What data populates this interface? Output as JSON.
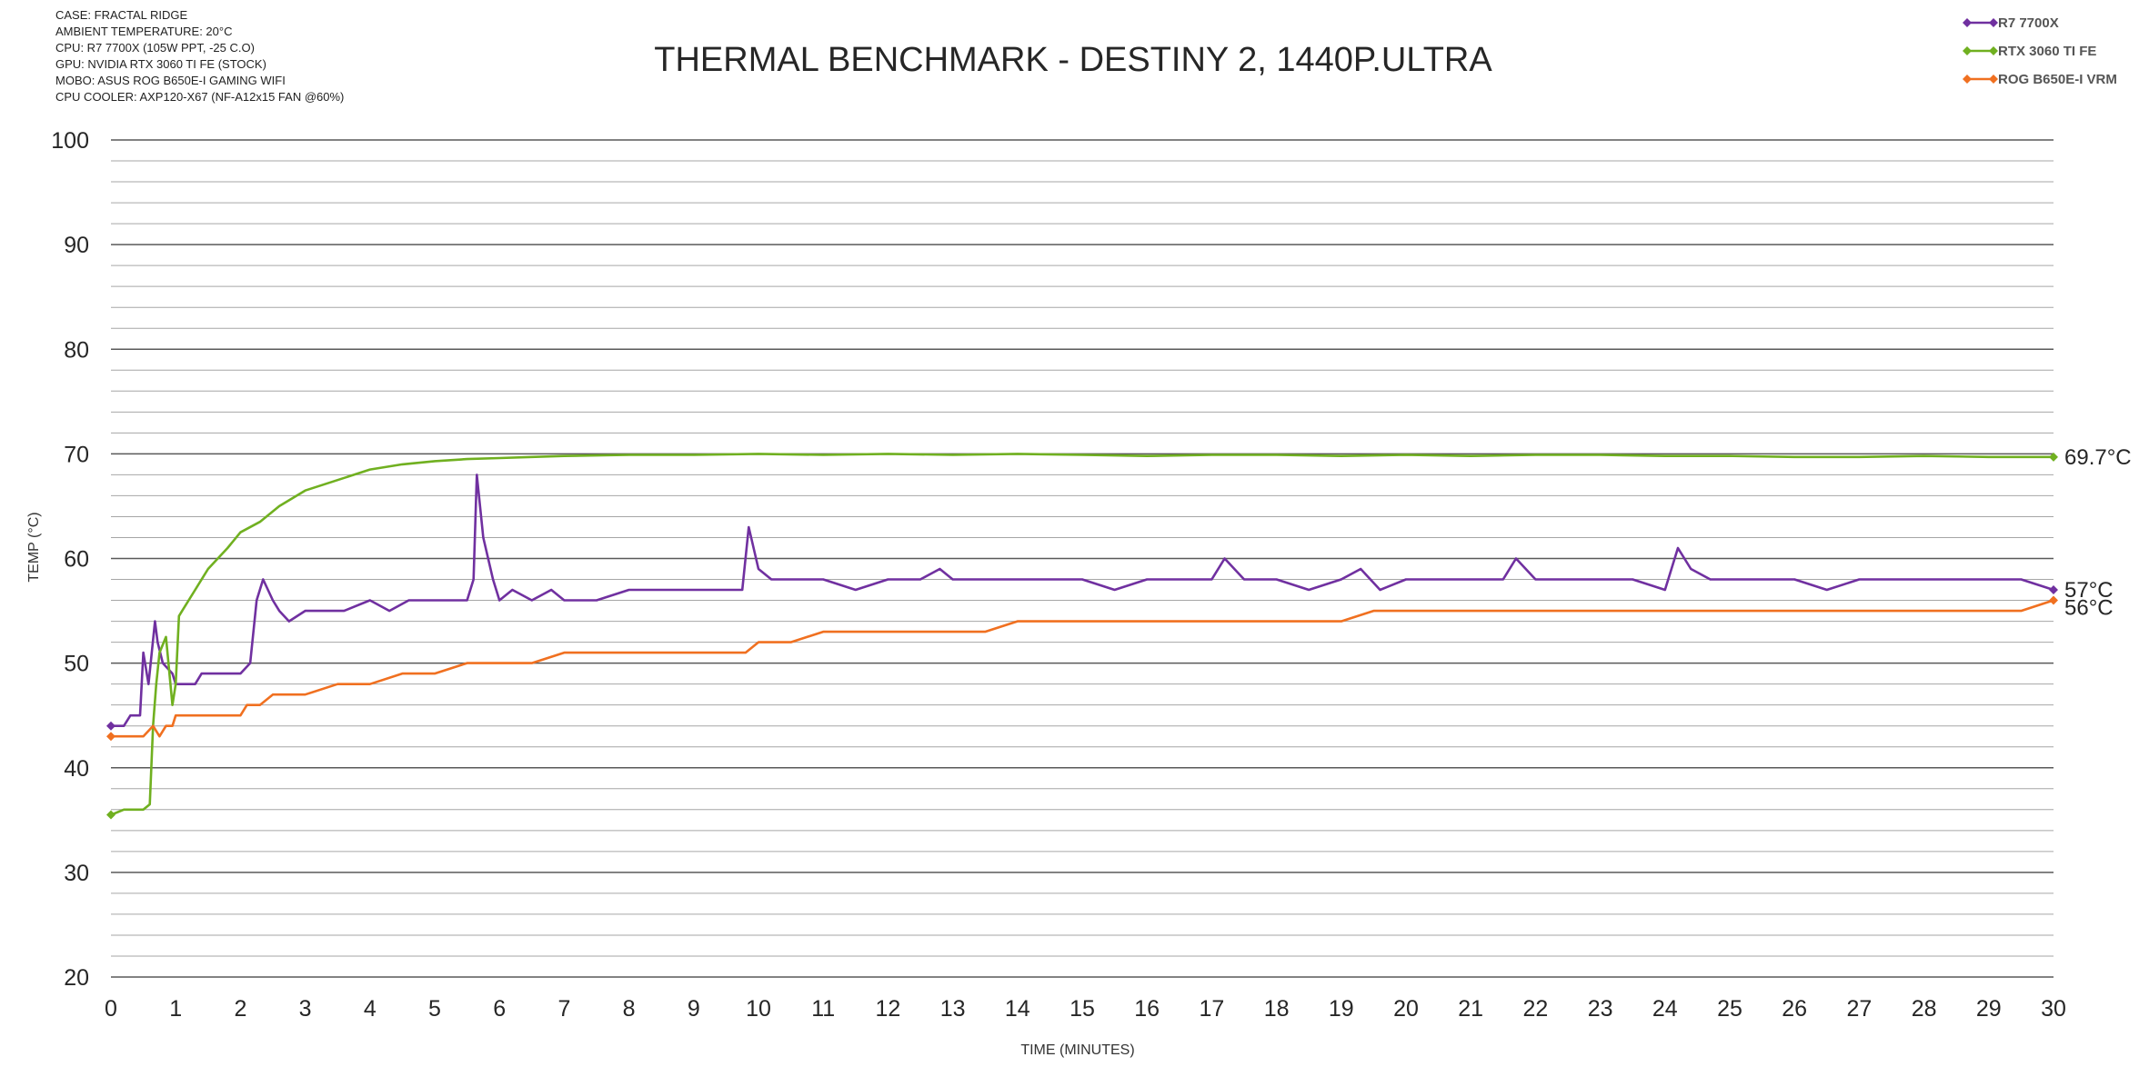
{
  "chart_data": {
    "type": "line",
    "title": "THERMAL BENCHMARK - DESTINY 2, 1440P.ULTRA",
    "specs": [
      "CASE: FRACTAL RIDGE",
      "AMBIENT TEMPERATURE: 20°C",
      "CPU: R7 7700X (105W PPT, -25 C.O)",
      "GPU: NVIDIA RTX 3060 TI FE (STOCK)",
      "MOBO: ASUS ROG B650E-I GAMING WIFI",
      "CPU COOLER: AXP120-X67 (NF-A12x15 FAN @60%)"
    ],
    "xlabel": "TIME (MINUTES)",
    "ylabel": "TEMP (°C)",
    "xlim": [
      0,
      30
    ],
    "ylim": [
      20,
      100
    ],
    "x_ticks": [
      "0",
      "1",
      "2",
      "3",
      "4",
      "5",
      "6",
      "7",
      "8",
      "9",
      "10",
      "11",
      "12",
      "13",
      "14",
      "15",
      "16",
      "17",
      "18",
      "19",
      "20",
      "21",
      "22",
      "23",
      "24",
      "25",
      "26",
      "27",
      "28",
      "29",
      "30"
    ],
    "y_ticks": [
      "20",
      "30",
      "40",
      "50",
      "60",
      "70",
      "80",
      "90",
      "100"
    ],
    "grid": true,
    "legend_position": "top-right",
    "series": [
      {
        "name": "R7 7700X",
        "color": "#7030A0",
        "end_label": "57°C",
        "x": [
          0,
          0.2,
          0.3,
          0.45,
          0.5,
          0.58,
          0.68,
          0.72,
          0.8,
          0.95,
          1.0,
          1.05,
          1.3,
          1.4,
          1.6,
          1.85,
          2.0,
          2.15,
          2.25,
          2.35,
          2.5,
          2.6,
          2.75,
          3.0,
          3.2,
          3.4,
          3.6,
          4.0,
          4.3,
          4.6,
          4.9,
          5.2,
          5.5,
          5.6,
          5.65,
          5.75,
          5.9,
          6.0,
          6.2,
          6.5,
          6.8,
          7.0,
          7.5,
          8.0,
          8.5,
          9.0,
          9.5,
          9.75,
          9.85,
          10.0,
          10.2,
          10.5,
          11.0,
          11.5,
          12.0,
          12.5,
          12.8,
          13.0,
          13.5,
          14.0,
          14.5,
          15.0,
          15.5,
          16.0,
          16.5,
          17.0,
          17.2,
          17.5,
          18.0,
          18.5,
          19.0,
          19.3,
          19.6,
          20.0,
          20.5,
          21.0,
          21.5,
          21.7,
          22.0,
          22.5,
          23.0,
          23.5,
          24.0,
          24.2,
          24.4,
          24.7,
          25.0,
          25.5,
          26.0,
          26.5,
          27.0,
          27.5,
          28.0,
          28.5,
          29.0,
          29.5,
          30.0
        ],
        "y": [
          44,
          44,
          45,
          45,
          51,
          48,
          54,
          52,
          50,
          49,
          48,
          48,
          48,
          49,
          49,
          49,
          49,
          50,
          56,
          58,
          56,
          55,
          54,
          55,
          55,
          55,
          55,
          56,
          55,
          56,
          56,
          56,
          56,
          58,
          68,
          62,
          58,
          56,
          57,
          56,
          57,
          56,
          56,
          57,
          57,
          57,
          57,
          57,
          63,
          59,
          58,
          58,
          58,
          57,
          58,
          58,
          59,
          58,
          58,
          58,
          58,
          58,
          57,
          58,
          58,
          58,
          60,
          58,
          58,
          57,
          58,
          59,
          57,
          58,
          58,
          58,
          58,
          60,
          58,
          58,
          58,
          58,
          57,
          61,
          59,
          58,
          58,
          58,
          58,
          57,
          58,
          58,
          58,
          58,
          58,
          58,
          57
        ]
      },
      {
        "name": "RTX 3060 TI FE",
        "color": "#70B020",
        "end_label": "69.7°C",
        "x": [
          0,
          0.2,
          0.5,
          0.6,
          0.65,
          0.7,
          0.75,
          0.85,
          0.95,
          1.0,
          1.05,
          1.1,
          1.3,
          1.5,
          1.8,
          2.0,
          2.3,
          2.6,
          3.0,
          3.5,
          4.0,
          4.5,
          5.0,
          5.5,
          6.0,
          6.5,
          7.0,
          8.0,
          9.0,
          10.0,
          11.0,
          12.0,
          13.0,
          14.0,
          15.0,
          16.0,
          17.0,
          18.0,
          19.0,
          20.0,
          21.0,
          22.0,
          23.0,
          24.0,
          25.0,
          26.0,
          27.0,
          28.0,
          29.0,
          30.0
        ],
        "y": [
          35.5,
          36,
          36,
          36.5,
          44,
          48,
          51,
          52.5,
          46,
          48,
          54.5,
          55,
          57,
          59,
          61,
          62.5,
          63.5,
          65,
          66.5,
          67.5,
          68.5,
          69,
          69.3,
          69.5,
          69.6,
          69.7,
          69.8,
          69.9,
          69.9,
          70,
          69.9,
          70,
          69.9,
          70,
          69.9,
          69.8,
          69.9,
          69.9,
          69.8,
          69.9,
          69.8,
          69.9,
          69.9,
          69.8,
          69.8,
          69.7,
          69.7,
          69.8,
          69.7,
          69.7
        ]
      },
      {
        "name": "ROG B650E-I VRM",
        "color": "#F07020",
        "end_label": "56°C",
        "x": [
          0,
          0.5,
          0.65,
          0.75,
          0.85,
          0.95,
          1.0,
          1.5,
          2.0,
          2.1,
          2.3,
          2.5,
          3.0,
          3.5,
          4.0,
          4.5,
          5.0,
          5.5,
          6.0,
          6.5,
          7.0,
          7.5,
          8.0,
          9.0,
          9.5,
          9.8,
          10.0,
          10.2,
          10.5,
          11.0,
          11.5,
          12.0,
          12.5,
          13.0,
          13.5,
          14.0,
          14.5,
          15.0,
          15.5,
          16.0,
          17.0,
          18.0,
          19.0,
          19.5,
          20.0,
          20.5,
          21.0,
          21.5,
          22.0,
          22.5,
          22.7,
          23.0,
          23.5,
          24.0,
          24.5,
          25.0,
          26.0,
          27.0,
          28.0,
          29.0,
          29.5,
          30.0
        ],
        "y": [
          43,
          43,
          44,
          43,
          44,
          44,
          45,
          45,
          45,
          46,
          46,
          47,
          47,
          48,
          48,
          49,
          49,
          50,
          50,
          50,
          51,
          51,
          51,
          51,
          51,
          51,
          52,
          52,
          52,
          53,
          53,
          53,
          53,
          53,
          53,
          54,
          54,
          54,
          54,
          54,
          54,
          54,
          54,
          55,
          55,
          55,
          55,
          55,
          55,
          55,
          55,
          55,
          55,
          55,
          55,
          55,
          55,
          55,
          55,
          55,
          55,
          56
        ]
      }
    ]
  }
}
